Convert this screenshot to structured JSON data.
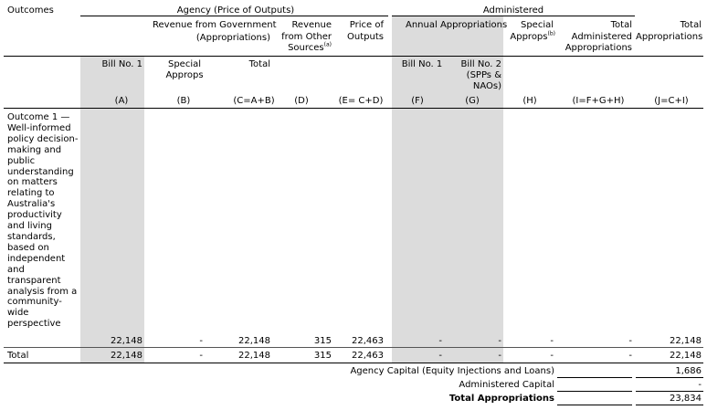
{
  "headers": {
    "outcomes": "Outcomes",
    "agency_group": "Agency (Price of Outputs)",
    "administered_group": "Administered",
    "rev_from_govt": "Revenue from Government",
    "rev_from_govt_sub": "(Appropriations)",
    "rev_other_1": "Revenue",
    "rev_other_2": "from Other",
    "rev_other_3": "Sources",
    "rev_other_note": "(a)",
    "price_outputs_1": "Price of",
    "price_outputs_2": "Outputs",
    "annual_approps": "Annual Appropriations",
    "special_approps_1": "Special",
    "special_approps_2": "Approps",
    "special_approps_note": "(b)",
    "total_admin_1": "Total",
    "total_admin_2": "Administered",
    "total_admin_3": "Appropriations",
    "total_approps_1": "Total",
    "total_approps_2": "Appropriations"
  },
  "subheaders": {
    "bill1_agency": "Bill No. 1",
    "special_agency_1": "Special",
    "special_agency_2": "Approps",
    "total_agency": "Total",
    "bill1_admin": "Bill No. 1",
    "bill2_admin_1": "Bill No. 2",
    "bill2_admin_2": "(SPPs &",
    "bill2_admin_3": "NAOs)"
  },
  "codes": [
    "(A)",
    "(B)",
    "(C=A+B)",
    "(D)",
    "(E= C+D)",
    "(F)",
    "(G)",
    "(H)",
    "(I=F+G+H)",
    "(J=C+I)"
  ],
  "outcome_row": {
    "label": "Outcome 1 — Well-informed policy decision-making and public understanding on matters relating to Australia's productivity and living standards, based on independent and transparent analysis from a community-wide perspective",
    "values": [
      "22,148",
      "-",
      "22,148",
      "315",
      "22,463",
      "-",
      "-",
      "-",
      "-",
      "22,148"
    ]
  },
  "total_row": {
    "label": "Total",
    "values": [
      "22,148",
      "-",
      "22,148",
      "315",
      "22,463",
      "-",
      "-",
      "-",
      "-",
      "22,148"
    ]
  },
  "summary": {
    "agency_capital_label": "Agency Capital (Equity Injections and Loans)",
    "agency_capital_value": "1,686",
    "admin_capital_label": "Administered Capital",
    "admin_capital_value": "-",
    "total_label": "Total Appropriations",
    "total_value": "23,834"
  },
  "colors": {
    "shade": "#dcdcdc"
  }
}
